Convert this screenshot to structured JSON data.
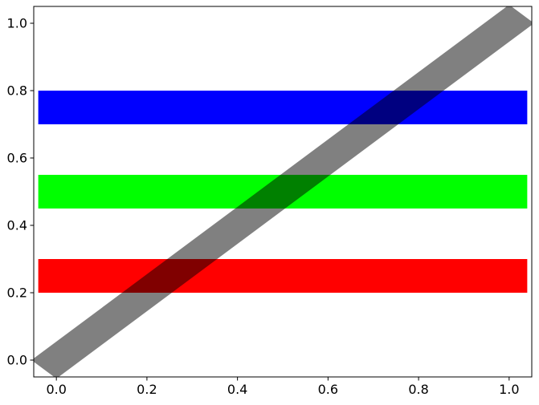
{
  "figure": {
    "background": "#ffffff",
    "frame_color": "#000000",
    "tick_color": "#000000",
    "tick_label_color": "#000000"
  },
  "chart_data": {
    "type": "area",
    "title": "",
    "xlabel": "",
    "ylabel": "",
    "grid": false,
    "legend": false,
    "xlim": [
      -0.05,
      1.05
    ],
    "ylim": [
      -0.05,
      1.05
    ],
    "x_ticks": [
      {
        "value": 0.0,
        "label": "0.0"
      },
      {
        "value": 0.2,
        "label": "0.2"
      },
      {
        "value": 0.4,
        "label": "0.4"
      },
      {
        "value": 0.6,
        "label": "0.6"
      },
      {
        "value": 0.8,
        "label": "0.8"
      },
      {
        "value": 1.0,
        "label": "1.0"
      }
    ],
    "y_ticks": [
      {
        "value": 0.0,
        "label": "0.0"
      },
      {
        "value": 0.2,
        "label": "0.2"
      },
      {
        "value": 0.4,
        "label": "0.4"
      },
      {
        "value": 0.6,
        "label": "0.6"
      },
      {
        "value": 0.8,
        "label": "0.8"
      },
      {
        "value": 1.0,
        "label": "1.0"
      }
    ],
    "bars": [
      {
        "name": "red-bar",
        "color": "#ff0000",
        "x_from": -0.04,
        "x_to": 1.04,
        "y_from": 0.2,
        "y_to": 0.3
      },
      {
        "name": "green-bar",
        "color": "#00ff00",
        "x_from": -0.04,
        "x_to": 1.04,
        "y_from": 0.45,
        "y_to": 0.55
      },
      {
        "name": "blue-bar",
        "color": "#0000ff",
        "x_from": -0.04,
        "x_to": 1.04,
        "y_from": 0.7,
        "y_to": 0.8
      }
    ],
    "diagonal_band": {
      "name": "gray-diagonal-band",
      "color": "#808080",
      "from": [
        0.0,
        0.0
      ],
      "to": [
        1.0,
        1.0
      ],
      "half_width": 0.055,
      "cap": "projecting",
      "blend": "multiply"
    },
    "overlap_colors": {
      "band_over_blue": "#000080",
      "band_over_green": "#008000",
      "band_over_red": "#800000"
    }
  }
}
